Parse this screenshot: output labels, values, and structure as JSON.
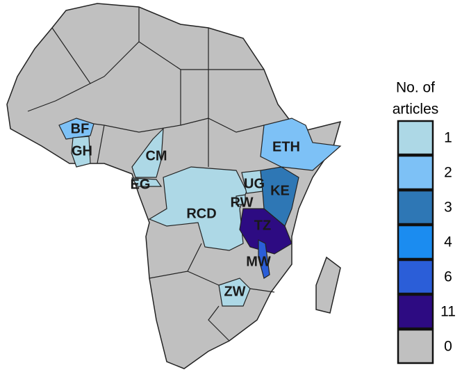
{
  "legend": {
    "title_lines": [
      "No. of",
      "articles"
    ],
    "items": [
      {
        "value": 1,
        "color": "#add8e6"
      },
      {
        "value": 2,
        "color": "#7dc1f6"
      },
      {
        "value": 3,
        "color": "#2e77b5"
      },
      {
        "value": 4,
        "color": "#1b8cf0"
      },
      {
        "value": 6,
        "color": "#2b5ed8"
      },
      {
        "value": 11,
        "color": "#2d0b82"
      },
      {
        "value": 0,
        "color": "#c0c0c0"
      }
    ]
  },
  "regions": [
    {
      "label": "BF",
      "value": 2
    },
    {
      "label": "GH",
      "value": 1
    },
    {
      "label": "CM",
      "value": 1
    },
    {
      "label": "EG",
      "value": 1
    },
    {
      "label": "RCD",
      "value": 1
    },
    {
      "label": "UG",
      "value": 1
    },
    {
      "label": "RW",
      "value": 1
    },
    {
      "label": "KE",
      "value": 3
    },
    {
      "label": "ETH",
      "value": 2
    },
    {
      "label": "TZ",
      "value": 11
    },
    {
      "label": "MW",
      "value": 6
    },
    {
      "label": "ZW",
      "value": 1
    }
  ]
}
